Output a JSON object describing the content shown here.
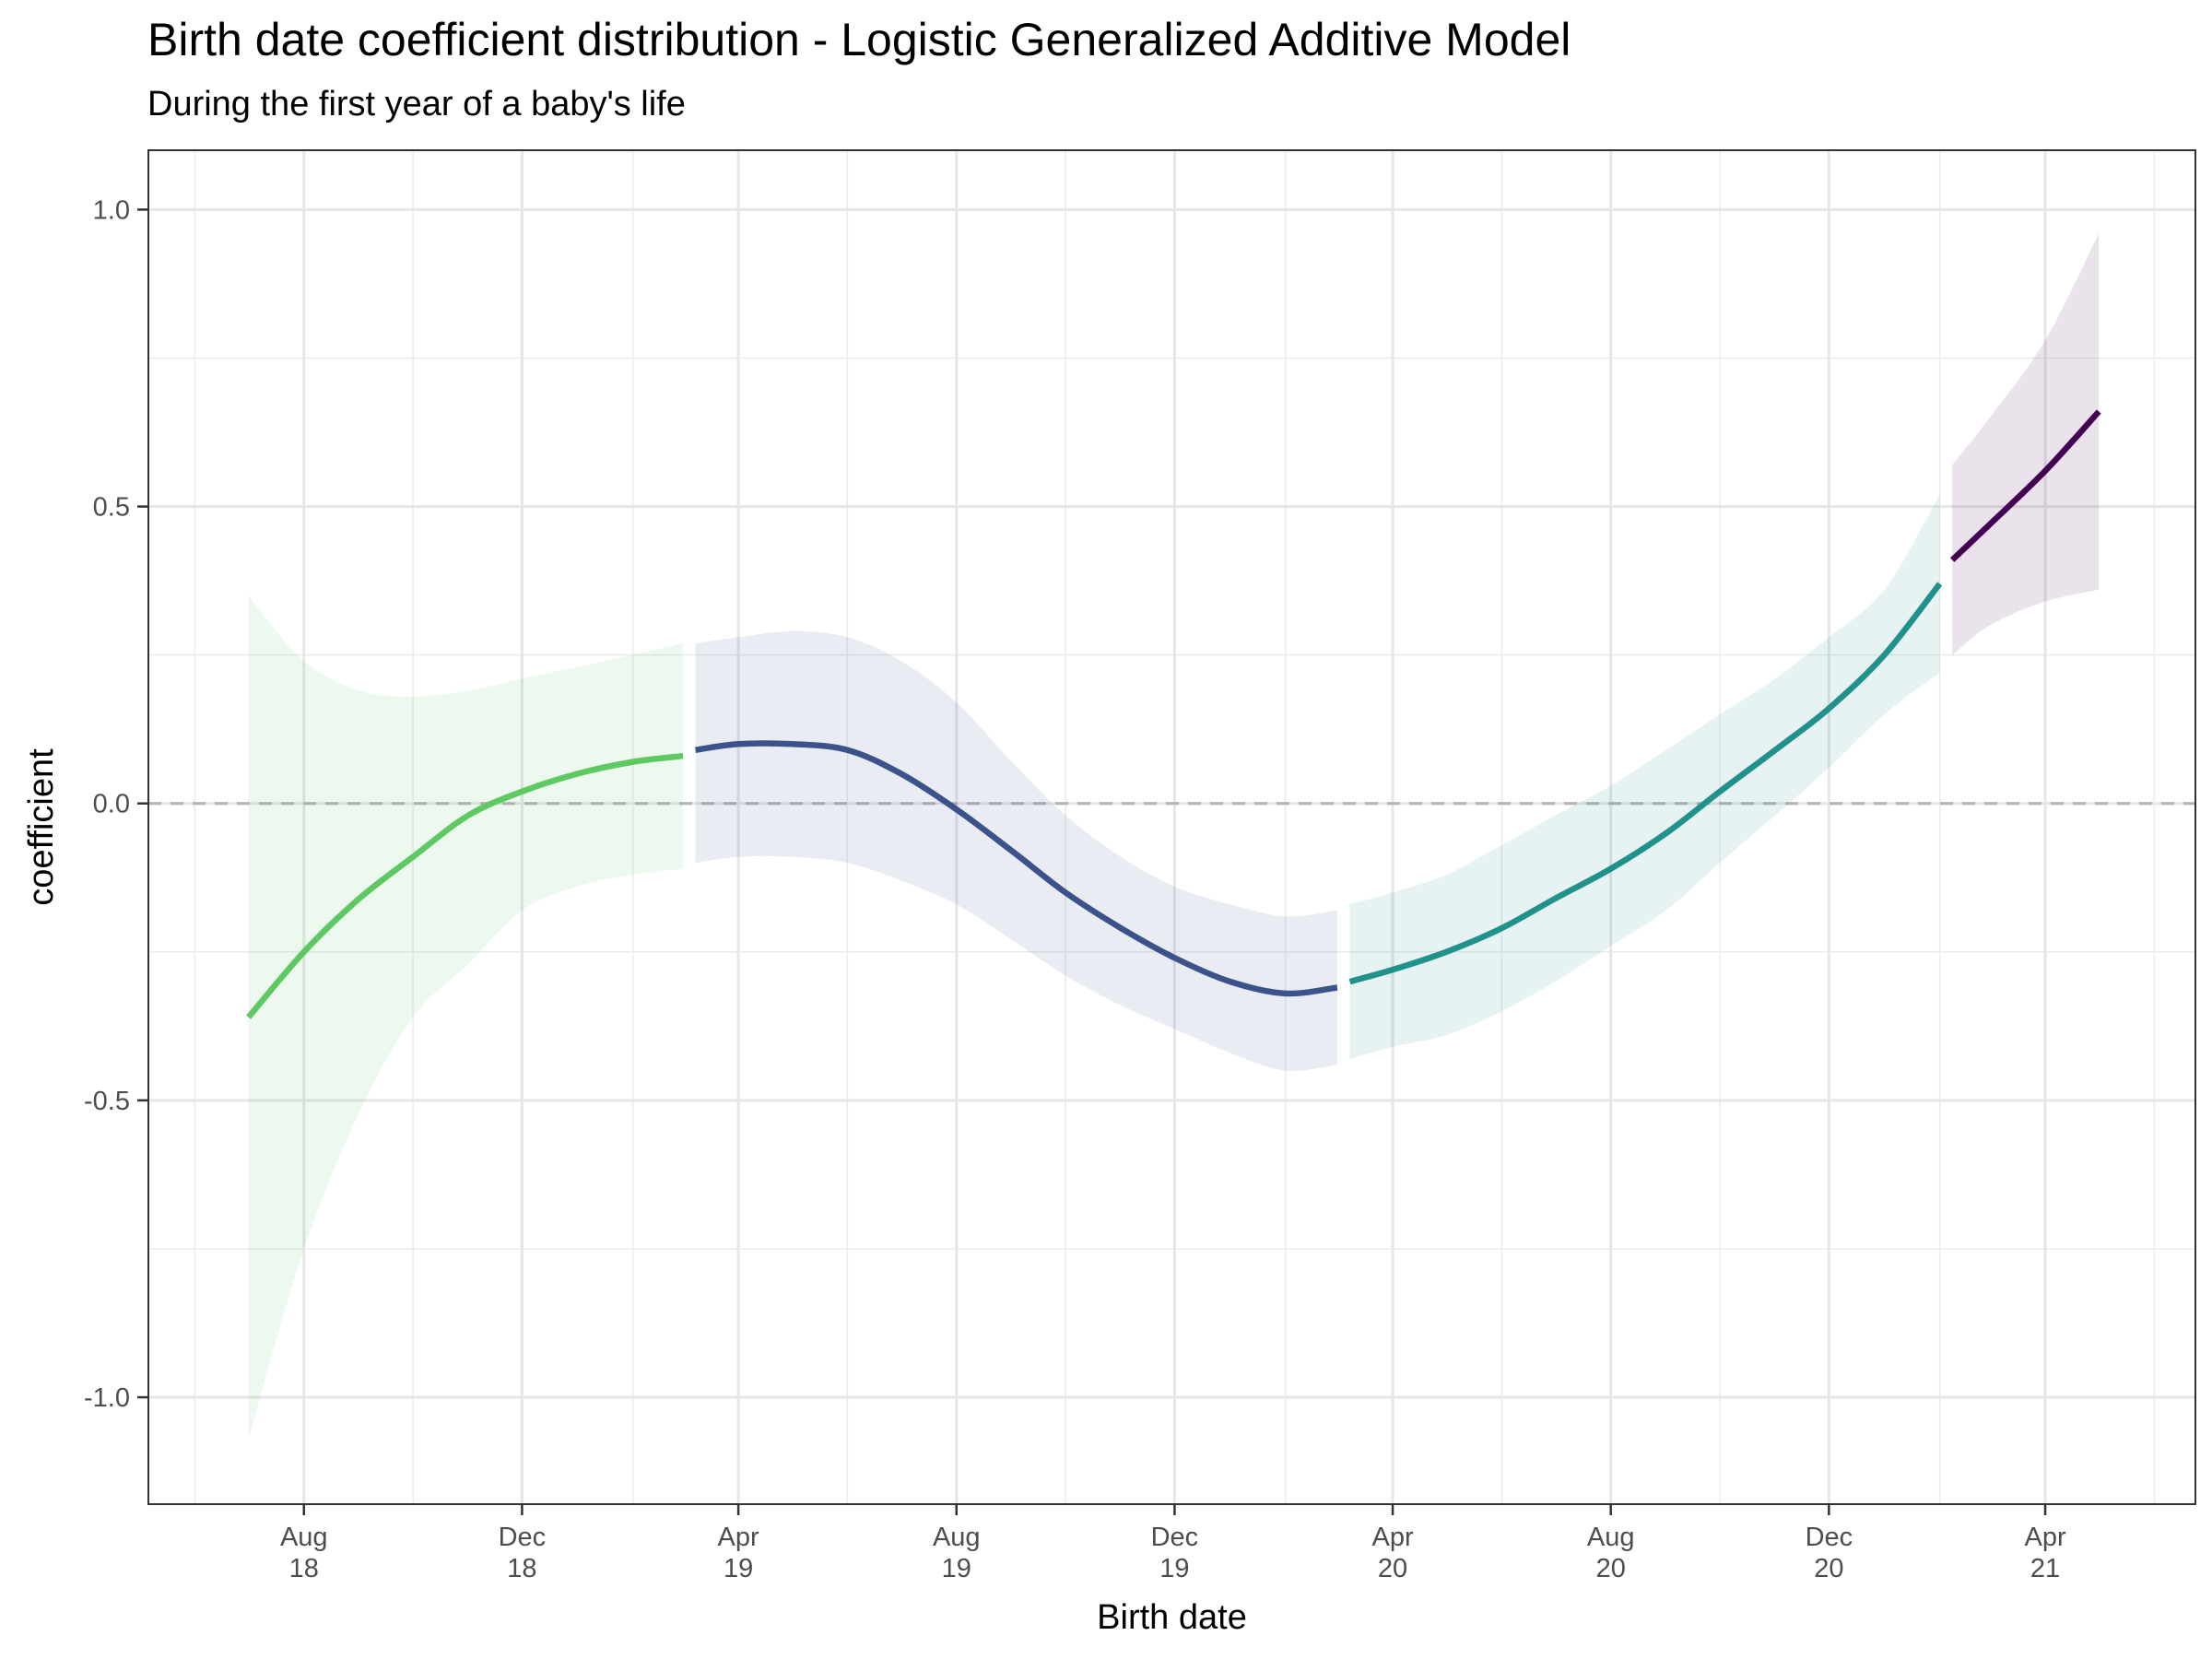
{
  "chart_data": {
    "type": "line",
    "title": "Birth date coefficient distribution - Logistic Generalized Additive Model",
    "subtitle": "During the first year of a baby's life",
    "xlabel": "Birth date",
    "ylabel": "coefficient",
    "xlim": [
      "2018-05-06",
      "2021-06-24"
    ],
    "ylim": [
      -1.18,
      1.1
    ],
    "grid": true,
    "reference_line": {
      "y": 0,
      "style": "dashed"
    },
    "x_ticks": [
      {
        "date": "2018-08-01",
        "label": [
          "Aug",
          "18"
        ]
      },
      {
        "date": "2018-12-01",
        "label": [
          "Dec",
          "18"
        ]
      },
      {
        "date": "2019-04-01",
        "label": [
          "Apr",
          "19"
        ]
      },
      {
        "date": "2019-08-01",
        "label": [
          "Aug",
          "19"
        ]
      },
      {
        "date": "2019-12-01",
        "label": [
          "Dec",
          "19"
        ]
      },
      {
        "date": "2020-04-01",
        "label": [
          "Apr",
          "20"
        ]
      },
      {
        "date": "2020-08-01",
        "label": [
          "Aug",
          "20"
        ]
      },
      {
        "date": "2020-12-01",
        "label": [
          "Dec",
          "20"
        ]
      },
      {
        "date": "2021-04-01",
        "label": [
          "Apr",
          "21"
        ]
      }
    ],
    "x_minor_ticks": [
      "2018-06-01",
      "2018-10-01",
      "2019-02-01",
      "2019-06-01",
      "2019-10-01",
      "2020-02-01",
      "2020-06-01",
      "2020-10-01",
      "2021-02-01",
      "2021-06-01"
    ],
    "y_ticks": [
      {
        "value": 1.0,
        "label": "1.0"
      },
      {
        "value": 0.5,
        "label": "0.5"
      },
      {
        "value": 0.0,
        "label": "0.0"
      },
      {
        "value": -0.5,
        "label": "-0.5"
      },
      {
        "value": -1.0,
        "label": "-1.0"
      }
    ],
    "y_minor_ticks": [
      0.75,
      0.25,
      -0.25,
      -0.75
    ],
    "series": [
      {
        "color": "#5ec962",
        "x": [
          "2018-07-01",
          "2018-08-01",
          "2018-09-01",
          "2018-10-01",
          "2018-11-01",
          "2018-12-01",
          "2019-01-01",
          "2019-02-01",
          "2019-03-01"
        ],
        "y": [
          -0.36,
          -0.25,
          -0.16,
          -0.09,
          -0.02,
          0.02,
          0.05,
          0.07,
          0.08
        ],
        "lower": [
          -1.07,
          -0.75,
          -0.52,
          -0.36,
          -0.27,
          -0.18,
          -0.14,
          -0.12,
          -0.11
        ],
        "upper": [
          0.35,
          0.24,
          0.19,
          0.18,
          0.19,
          0.21,
          0.23,
          0.25,
          0.27
        ]
      },
      {
        "color": "#3b528b",
        "x": [
          "2019-03-08",
          "2019-04-01",
          "2019-05-01",
          "2019-06-01",
          "2019-07-01",
          "2019-08-01",
          "2019-09-01",
          "2019-10-01",
          "2019-11-01",
          "2019-12-01",
          "2020-01-01",
          "2020-02-01",
          "2020-03-01"
        ],
        "y": [
          0.09,
          0.1,
          0.1,
          0.09,
          0.05,
          -0.01,
          -0.08,
          -0.15,
          -0.21,
          -0.26,
          -0.3,
          -0.32,
          -0.31
        ],
        "lower": [
          -0.1,
          -0.09,
          -0.09,
          -0.1,
          -0.13,
          -0.17,
          -0.23,
          -0.29,
          -0.34,
          -0.38,
          -0.42,
          -0.45,
          -0.44
        ],
        "upper": [
          0.27,
          0.28,
          0.29,
          0.28,
          0.24,
          0.17,
          0.07,
          -0.02,
          -0.09,
          -0.14,
          -0.17,
          -0.19,
          -0.18
        ]
      },
      {
        "color": "#21918c",
        "x": [
          "2020-03-08",
          "2020-04-01",
          "2020-05-01",
          "2020-06-01",
          "2020-07-01",
          "2020-08-01",
          "2020-09-01",
          "2020-10-01",
          "2020-11-01",
          "2020-12-01",
          "2021-01-01",
          "2021-02-01"
        ],
        "y": [
          -0.3,
          -0.28,
          -0.25,
          -0.21,
          -0.16,
          -0.11,
          -0.05,
          0.02,
          0.09,
          0.16,
          0.25,
          0.37
        ],
        "lower": [
          -0.43,
          -0.41,
          -0.39,
          -0.35,
          -0.3,
          -0.24,
          -0.18,
          -0.1,
          -0.02,
          0.06,
          0.15,
          0.22
        ],
        "upper": [
          -0.17,
          -0.15,
          -0.12,
          -0.07,
          -0.02,
          0.03,
          0.09,
          0.15,
          0.21,
          0.28,
          0.36,
          0.52
        ]
      },
      {
        "color": "#440154",
        "x": [
          "2021-02-08",
          "2021-03-01",
          "2021-04-01",
          "2021-05-01"
        ],
        "y": [
          0.41,
          0.47,
          0.56,
          0.66
        ],
        "lower": [
          0.25,
          0.3,
          0.34,
          0.36
        ],
        "upper": [
          0.57,
          0.65,
          0.78,
          0.96
        ]
      }
    ]
  }
}
